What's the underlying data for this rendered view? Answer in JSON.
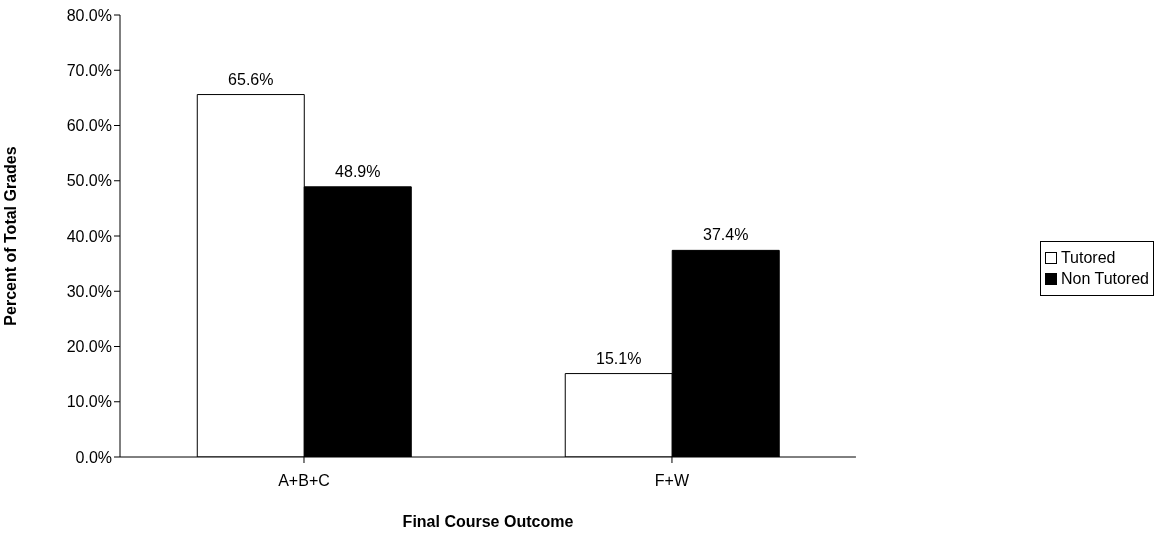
{
  "chart_data": {
    "type": "bar",
    "xlabel": "Final Course Outcome",
    "ylabel": "Percent of Total Grades",
    "categories": [
      "A+B+C",
      "F+W"
    ],
    "series": [
      {
        "name": "Tutored",
        "color": "#ffffff",
        "values": [
          65.6,
          15.1
        ],
        "value_labels": [
          "65.6%",
          "15.1%"
        ]
      },
      {
        "name": "Non Tutored",
        "color": "#000000",
        "values": [
          48.9,
          37.4
        ],
        "value_labels": [
          "48.9%",
          "37.4%"
        ]
      }
    ],
    "ylim": [
      0,
      80
    ],
    "yticks": [
      {
        "value": 0,
        "label": "0.0%"
      },
      {
        "value": 10,
        "label": "10.0%"
      },
      {
        "value": 20,
        "label": "20.0%"
      },
      {
        "value": 30,
        "label": "30.0%"
      },
      {
        "value": 40,
        "label": "40.0%"
      },
      {
        "value": 50,
        "label": "50.0%"
      },
      {
        "value": 60,
        "label": "60.0%"
      },
      {
        "value": 70,
        "label": "70.0%"
      },
      {
        "value": 80,
        "label": "80.0%"
      }
    ],
    "grid": false,
    "legend": "right"
  }
}
